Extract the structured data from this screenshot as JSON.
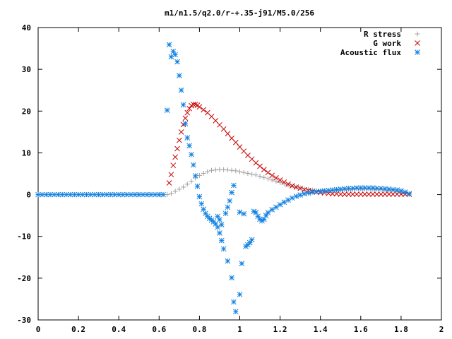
{
  "chart_data": {
    "type": "scatter",
    "title": "m1/n1.5/q2.0/r-+.35-j91/M5.0/256",
    "xlabel": "",
    "ylabel": "",
    "xlim": [
      0,
      2
    ],
    "ylim": [
      -30,
      40
    ],
    "x_ticks": [
      "0",
      "0.2",
      "0.4",
      "0.6",
      "0.8",
      "1",
      "1.2",
      "1.4",
      "1.6",
      "1.8",
      "2"
    ],
    "y_ticks": [
      "40",
      "30",
      "20",
      "10",
      "0",
      "-10",
      "-20",
      "-30"
    ],
    "legend_position": "top-right",
    "grid": false,
    "series": [
      {
        "name": "R stress",
        "marker": "plus",
        "color": "#a0a0a0",
        "points": [
          [
            0.0,
            0
          ],
          [
            0.1,
            0
          ],
          [
            0.2,
            0
          ],
          [
            0.3,
            0
          ],
          [
            0.4,
            0
          ],
          [
            0.5,
            0
          ],
          [
            0.6,
            0
          ],
          [
            0.64,
            0
          ],
          [
            0.66,
            0.3
          ],
          [
            0.68,
            0.8
          ],
          [
            0.7,
            1.3
          ],
          [
            0.72,
            1.8
          ],
          [
            0.74,
            2.5
          ],
          [
            0.76,
            3.2
          ],
          [
            0.78,
            4.0
          ],
          [
            0.8,
            4.6
          ],
          [
            0.82,
            5.1
          ],
          [
            0.84,
            5.5
          ],
          [
            0.86,
            5.8
          ],
          [
            0.88,
            5.9
          ],
          [
            0.9,
            6.0
          ],
          [
            0.92,
            6.0
          ],
          [
            0.94,
            5.9
          ],
          [
            0.96,
            5.8
          ],
          [
            0.98,
            5.7
          ],
          [
            1.0,
            5.5
          ],
          [
            1.02,
            5.3
          ],
          [
            1.04,
            5.1
          ],
          [
            1.06,
            4.9
          ],
          [
            1.08,
            4.7
          ],
          [
            1.1,
            4.4
          ],
          [
            1.12,
            4.1
          ],
          [
            1.14,
            3.8
          ],
          [
            1.16,
            3.5
          ],
          [
            1.18,
            3.2
          ],
          [
            1.2,
            2.9
          ],
          [
            1.22,
            2.6
          ],
          [
            1.24,
            2.3
          ],
          [
            1.26,
            2.0
          ],
          [
            1.28,
            1.8
          ],
          [
            1.3,
            1.6
          ],
          [
            1.32,
            1.4
          ],
          [
            1.34,
            1.2
          ],
          [
            1.36,
            1.1
          ],
          [
            1.38,
            1.0
          ],
          [
            1.4,
            0.9
          ],
          [
            1.42,
            0.9
          ],
          [
            1.44,
            0.9
          ],
          [
            1.46,
            1.0
          ],
          [
            1.48,
            1.0
          ],
          [
            1.5,
            1.1
          ],
          [
            1.52,
            1.2
          ],
          [
            1.54,
            1.3
          ],
          [
            1.56,
            1.3
          ],
          [
            1.58,
            1.4
          ],
          [
            1.6,
            1.4
          ],
          [
            1.62,
            1.4
          ],
          [
            1.64,
            1.4
          ],
          [
            1.66,
            1.3
          ],
          [
            1.68,
            1.3
          ],
          [
            1.7,
            1.2
          ],
          [
            1.72,
            1.1
          ],
          [
            1.74,
            1.0
          ],
          [
            1.76,
            0.9
          ],
          [
            1.78,
            0.7
          ],
          [
            1.8,
            0.5
          ],
          [
            1.82,
            0.3
          ],
          [
            1.84,
            0.1
          ]
        ]
      },
      {
        "name": "G work",
        "marker": "cross",
        "color": "#cc0000",
        "points": [
          [
            0.65,
            2.8
          ],
          [
            0.66,
            4.8
          ],
          [
            0.67,
            7.0
          ],
          [
            0.68,
            9.0
          ],
          [
            0.69,
            11.0
          ],
          [
            0.7,
            13.0
          ],
          [
            0.71,
            15.0
          ],
          [
            0.72,
            16.8
          ],
          [
            0.73,
            18.3
          ],
          [
            0.74,
            19.6
          ],
          [
            0.75,
            20.6
          ],
          [
            0.76,
            21.3
          ],
          [
            0.77,
            21.6
          ],
          [
            0.78,
            21.6
          ],
          [
            0.79,
            21.4
          ],
          [
            0.8,
            21.0
          ],
          [
            0.82,
            20.3
          ],
          [
            0.84,
            19.6
          ],
          [
            0.86,
            18.7
          ],
          [
            0.88,
            17.7
          ],
          [
            0.9,
            16.7
          ],
          [
            0.92,
            15.7
          ],
          [
            0.94,
            14.6
          ],
          [
            0.96,
            13.5
          ],
          [
            0.98,
            12.5
          ],
          [
            1.0,
            11.4
          ],
          [
            1.02,
            10.4
          ],
          [
            1.04,
            9.4
          ],
          [
            1.06,
            8.5
          ],
          [
            1.08,
            7.6
          ],
          [
            1.1,
            6.8
          ],
          [
            1.12,
            6.0
          ],
          [
            1.14,
            5.3
          ],
          [
            1.16,
            4.6
          ],
          [
            1.18,
            4.0
          ],
          [
            1.2,
            3.5
          ],
          [
            1.22,
            3.0
          ],
          [
            1.24,
            2.5
          ],
          [
            1.26,
            2.1
          ],
          [
            1.28,
            1.8
          ],
          [
            1.3,
            1.5
          ],
          [
            1.32,
            1.2
          ],
          [
            1.34,
            1.0
          ],
          [
            1.36,
            0.8
          ],
          [
            1.38,
            0.6
          ],
          [
            1.4,
            0.5
          ],
          [
            1.42,
            0.4
          ],
          [
            1.44,
            0.3
          ],
          [
            1.46,
            0.2
          ],
          [
            1.48,
            0.2
          ],
          [
            1.5,
            0.1
          ],
          [
            1.52,
            0.1
          ],
          [
            1.54,
            0.1
          ],
          [
            1.56,
            0.1
          ],
          [
            1.58,
            0.1
          ],
          [
            1.6,
            0.1
          ],
          [
            1.62,
            0.1
          ],
          [
            1.64,
            0.1
          ],
          [
            1.66,
            0.1
          ],
          [
            1.68,
            0.1
          ],
          [
            1.7,
            0.1
          ],
          [
            1.72,
            0.1
          ],
          [
            1.74,
            0.1
          ],
          [
            1.76,
            0.1
          ],
          [
            1.78,
            0.1
          ],
          [
            1.8,
            0.1
          ],
          [
            1.82,
            0.1
          ],
          [
            1.84,
            0.1
          ]
        ]
      },
      {
        "name": "Acoustic flux",
        "marker": "star",
        "color": "#1080e0",
        "points": [
          [
            0.0,
            0
          ],
          [
            0.02,
            0
          ],
          [
            0.04,
            0
          ],
          [
            0.06,
            0
          ],
          [
            0.08,
            0
          ],
          [
            0.1,
            0
          ],
          [
            0.12,
            0
          ],
          [
            0.14,
            0
          ],
          [
            0.16,
            0
          ],
          [
            0.18,
            0
          ],
          [
            0.2,
            0
          ],
          [
            0.22,
            0
          ],
          [
            0.24,
            0
          ],
          [
            0.26,
            0
          ],
          [
            0.28,
            0
          ],
          [
            0.3,
            0
          ],
          [
            0.32,
            0
          ],
          [
            0.34,
            0
          ],
          [
            0.36,
            0
          ],
          [
            0.38,
            0
          ],
          [
            0.4,
            0
          ],
          [
            0.42,
            0
          ],
          [
            0.44,
            0
          ],
          [
            0.46,
            0
          ],
          [
            0.48,
            0
          ],
          [
            0.5,
            0
          ],
          [
            0.52,
            0
          ],
          [
            0.54,
            0
          ],
          [
            0.56,
            0
          ],
          [
            0.58,
            0
          ],
          [
            0.6,
            0
          ],
          [
            0.62,
            0
          ],
          [
            0.64,
            20.2
          ],
          [
            0.65,
            35.9
          ],
          [
            0.66,
            33.0
          ],
          [
            0.67,
            34.3
          ],
          [
            0.68,
            33.5
          ],
          [
            0.69,
            31.8
          ],
          [
            0.7,
            28.5
          ],
          [
            0.71,
            25.0
          ],
          [
            0.72,
            21.5
          ],
          [
            0.73,
            17.0
          ],
          [
            0.74,
            13.6
          ],
          [
            0.75,
            11.7
          ],
          [
            0.76,
            9.6
          ],
          [
            0.77,
            7.1
          ],
          [
            0.78,
            4.5
          ],
          [
            0.79,
            2.0
          ],
          [
            0.8,
            -0.5
          ],
          [
            0.81,
            -2.2
          ],
          [
            0.82,
            -3.5
          ],
          [
            0.83,
            -4.5
          ],
          [
            0.84,
            -5.2
          ],
          [
            0.85,
            -5.7
          ],
          [
            0.86,
            -6.1
          ],
          [
            0.87,
            -6.5
          ],
          [
            0.88,
            -7.0
          ],
          [
            0.89,
            -7.8
          ],
          [
            0.9,
            -9.2
          ],
          [
            0.91,
            -11.0
          ],
          [
            0.92,
            -13.0
          ],
          [
            0.94,
            -15.9
          ],
          [
            0.96,
            -19.9
          ],
          [
            0.97,
            -25.7
          ],
          [
            0.98,
            -28.0
          ],
          [
            0.93,
            -4.5
          ],
          [
            0.94,
            -3.0
          ],
          [
            0.95,
            -1.5
          ],
          [
            0.96,
            0.5
          ],
          [
            0.97,
            2.2
          ],
          [
            0.89,
            -5.2
          ],
          [
            0.9,
            -6.0
          ],
          [
            0.91,
            -7.2
          ],
          [
            1.0,
            -23.9
          ],
          [
            1.01,
            -16.5
          ],
          [
            1.0,
            -4.2
          ],
          [
            1.02,
            -4.6
          ],
          [
            1.03,
            -12.4
          ],
          [
            1.04,
            -12.0
          ],
          [
            1.05,
            -11.5
          ],
          [
            1.06,
            -10.8
          ],
          [
            1.07,
            -4.0
          ],
          [
            1.08,
            -4.3
          ],
          [
            1.09,
            -5.2
          ],
          [
            1.1,
            -5.9
          ],
          [
            1.11,
            -6.3
          ],
          [
            1.12,
            -5.9
          ],
          [
            1.13,
            -5.0
          ],
          [
            1.14,
            -4.3
          ],
          [
            1.16,
            -3.6
          ],
          [
            1.18,
            -3.0
          ],
          [
            1.2,
            -2.4
          ],
          [
            1.22,
            -1.8
          ],
          [
            1.24,
            -1.3
          ],
          [
            1.26,
            -0.8
          ],
          [
            1.28,
            -0.4
          ],
          [
            1.3,
            -0.1
          ],
          [
            1.32,
            0.2
          ],
          [
            1.34,
            0.4
          ],
          [
            1.36,
            0.6
          ],
          [
            1.38,
            0.7
          ],
          [
            1.4,
            0.8
          ],
          [
            1.42,
            0.9
          ],
          [
            1.44,
            1.0
          ],
          [
            1.46,
            1.1
          ],
          [
            1.48,
            1.2
          ],
          [
            1.5,
            1.3
          ],
          [
            1.52,
            1.4
          ],
          [
            1.54,
            1.5
          ],
          [
            1.56,
            1.5
          ],
          [
            1.58,
            1.6
          ],
          [
            1.6,
            1.6
          ],
          [
            1.62,
            1.6
          ],
          [
            1.64,
            1.6
          ],
          [
            1.66,
            1.6
          ],
          [
            1.68,
            1.5
          ],
          [
            1.7,
            1.5
          ],
          [
            1.72,
            1.4
          ],
          [
            1.74,
            1.3
          ],
          [
            1.76,
            1.2
          ],
          [
            1.78,
            1.1
          ],
          [
            1.8,
            0.9
          ],
          [
            1.82,
            0.6
          ],
          [
            1.84,
            0.2
          ]
        ]
      }
    ]
  }
}
